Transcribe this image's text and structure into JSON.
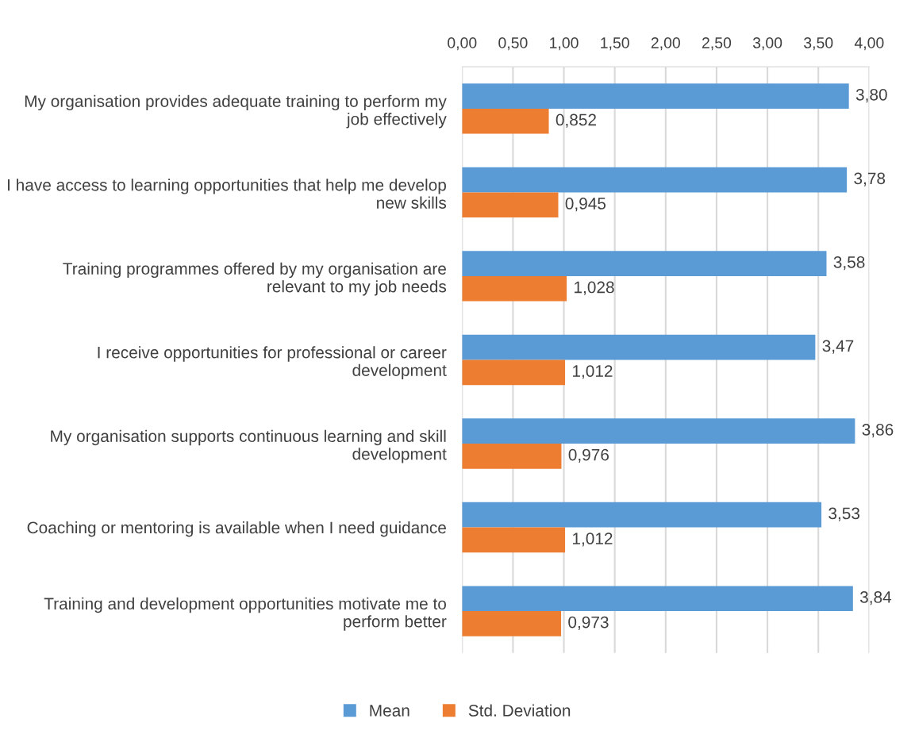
{
  "chart_data": {
    "type": "bar",
    "orientation": "horizontal",
    "categories": [
      "My organisation provides adequate training to perform my job effectively",
      "I have access to learning opportunities that help me develop new skills",
      "Training programmes offered by my organisation are relevant to my job needs",
      "I receive opportunities for professional or career development",
      "My organisation supports continuous learning and skill development",
      "Coaching or mentoring is available when I need guidance",
      "Training and development opportunities motivate me to perform better"
    ],
    "series": [
      {
        "name": "Mean",
        "color": "#5b9bd5",
        "values": [
          3.8,
          3.78,
          3.58,
          3.47,
          3.86,
          3.53,
          3.84
        ],
        "value_labels": [
          "3,80",
          "3,78",
          "3,58",
          "3,47",
          "3,86",
          "3,53",
          "3,84"
        ]
      },
      {
        "name": "Std. Deviation",
        "color": "#ed7d31",
        "values": [
          0.852,
          0.945,
          1.028,
          1.012,
          0.976,
          1.012,
          0.973
        ],
        "value_labels": [
          "0,852",
          "0,945",
          "1,028",
          "1,012",
          "0,976",
          "1,012",
          "0,973"
        ]
      }
    ],
    "xlim": [
      0,
      4
    ],
    "xticks": [
      {
        "value": 0,
        "label": "0,00"
      },
      {
        "value": 0.5,
        "label": "0,50"
      },
      {
        "value": 1,
        "label": "1,00"
      },
      {
        "value": 1.5,
        "label": "1,50"
      },
      {
        "value": 2,
        "label": "2,00"
      },
      {
        "value": 2.5,
        "label": "2,50"
      },
      {
        "value": 3,
        "label": "3,00"
      },
      {
        "value": 3.5,
        "label": "3,50"
      },
      {
        "value": 4,
        "label": "4,00"
      }
    ],
    "grid": "x",
    "legend": "bottom"
  }
}
